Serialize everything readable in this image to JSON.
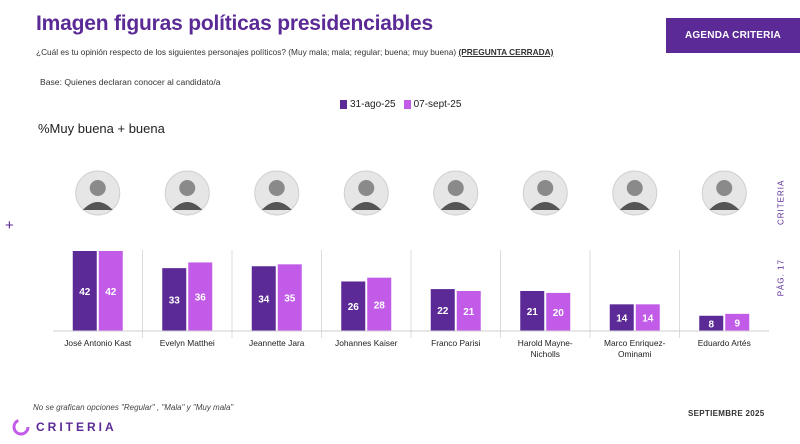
{
  "title": "Imagen figuras políticas presidenciables",
  "question": "¿Cuál es tu opinión respecto de los siguientes personajes políticos?  (Muy mala; mala; regular; buena; muy buena)",
  "question_tag": "(PREGUNTA CERRADA)",
  "base": "Base: Quienes declaran conocer al candidato/a",
  "badge": "AGENDA CRITERIA",
  "metric_label": "%Muy buena + buena",
  "side_brand": "CRITERIA",
  "page_label": "PÁG. 17",
  "plus_glyph": "+",
  "footnote": "No se grafican opciones \"Regular\" , \"Mala\" y \"Muy mala\"",
  "date_label": "SEPTIEMBRE 2025",
  "logo_text": "CRITERIA",
  "colors": {
    "dark": "#5b2a96",
    "light": "#c25ce8",
    "accent": "#5b2a96"
  },
  "chart_data": {
    "type": "bar",
    "categories": [
      "José Antonio Kast",
      "Evelyn Matthei",
      "Jeannette Jara",
      "Johannes Kaiser",
      "Franco Parisi",
      "Harold Mayne-Nicholls",
      "Marco Enriquez-Ominami",
      "Eduardo Artés"
    ],
    "category_lines": [
      [
        "José Antonio Kast"
      ],
      [
        "Evelyn Matthei"
      ],
      [
        "Jeannette Jara"
      ],
      [
        "Johannes Kaiser"
      ],
      [
        "Franco Parisi"
      ],
      [
        "Harold Mayne-",
        "Nicholls"
      ],
      [
        "Marco Enriquez-",
        "Ominami"
      ],
      [
        "Eduardo Artés"
      ]
    ],
    "series": [
      {
        "name": "31-ago-25",
        "color": "#5b2a96",
        "values": [
          42,
          33,
          34,
          26,
          22,
          21,
          14,
          8
        ]
      },
      {
        "name": "07-sept-25",
        "color": "#c25ce8",
        "values": [
          42,
          36,
          35,
          28,
          21,
          20,
          14,
          9
        ]
      }
    ],
    "ylim": [
      0,
      45
    ],
    "legend": "top-center",
    "data_labels": true,
    "grid": false
  }
}
